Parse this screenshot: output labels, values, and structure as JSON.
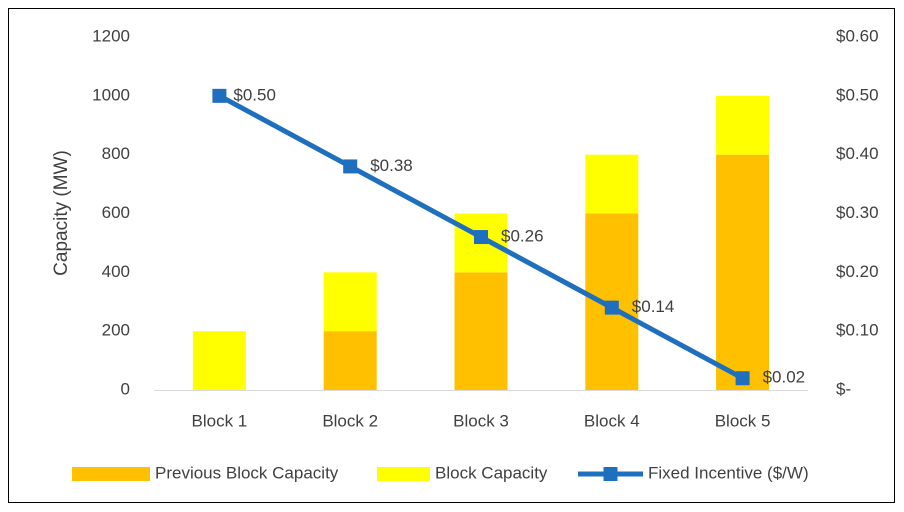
{
  "chart_data": {
    "type": "bar",
    "y_label": "Capacity (MW)",
    "categories": [
      "Block 1",
      "Block 2",
      "Block 3",
      "Block 4",
      "Block 5"
    ],
    "series": [
      {
        "name": "Previous Block Capacity",
        "color": "#ffc000",
        "type": "bar",
        "values": [
          0,
          200,
          400,
          600,
          800
        ]
      },
      {
        "name": "Block Capacity",
        "color": "#ffff00",
        "type": "bar",
        "values": [
          200,
          200,
          200,
          200,
          200
        ]
      },
      {
        "name": "Fixed Incentive ($/W)",
        "color": "#1f6fbf",
        "type": "line",
        "axis": "y2",
        "values": [
          0.5,
          0.38,
          0.26,
          0.14,
          0.02
        ],
        "value_labels": [
          "$0.50",
          "$0.38",
          "$0.26",
          "$0.14",
          "$0.02"
        ]
      }
    ],
    "stacked": true,
    "ylim": [
      0,
      1200
    ],
    "yticks": [
      0,
      200,
      400,
      600,
      800,
      1000,
      1200
    ],
    "y2lim": [
      0,
      0.6
    ],
    "y2ticks": [
      {
        "value": 0,
        "label": "$-"
      },
      {
        "value": 0.1,
        "label": "$0.10"
      },
      {
        "value": 0.2,
        "label": "$0.20"
      },
      {
        "value": 0.3,
        "label": "$0.30"
      },
      {
        "value": 0.4,
        "label": "$0.40"
      },
      {
        "value": 0.5,
        "label": "$0.50"
      },
      {
        "value": 0.6,
        "label": "$0.60"
      }
    ],
    "grid": false,
    "legend": "bottom"
  }
}
